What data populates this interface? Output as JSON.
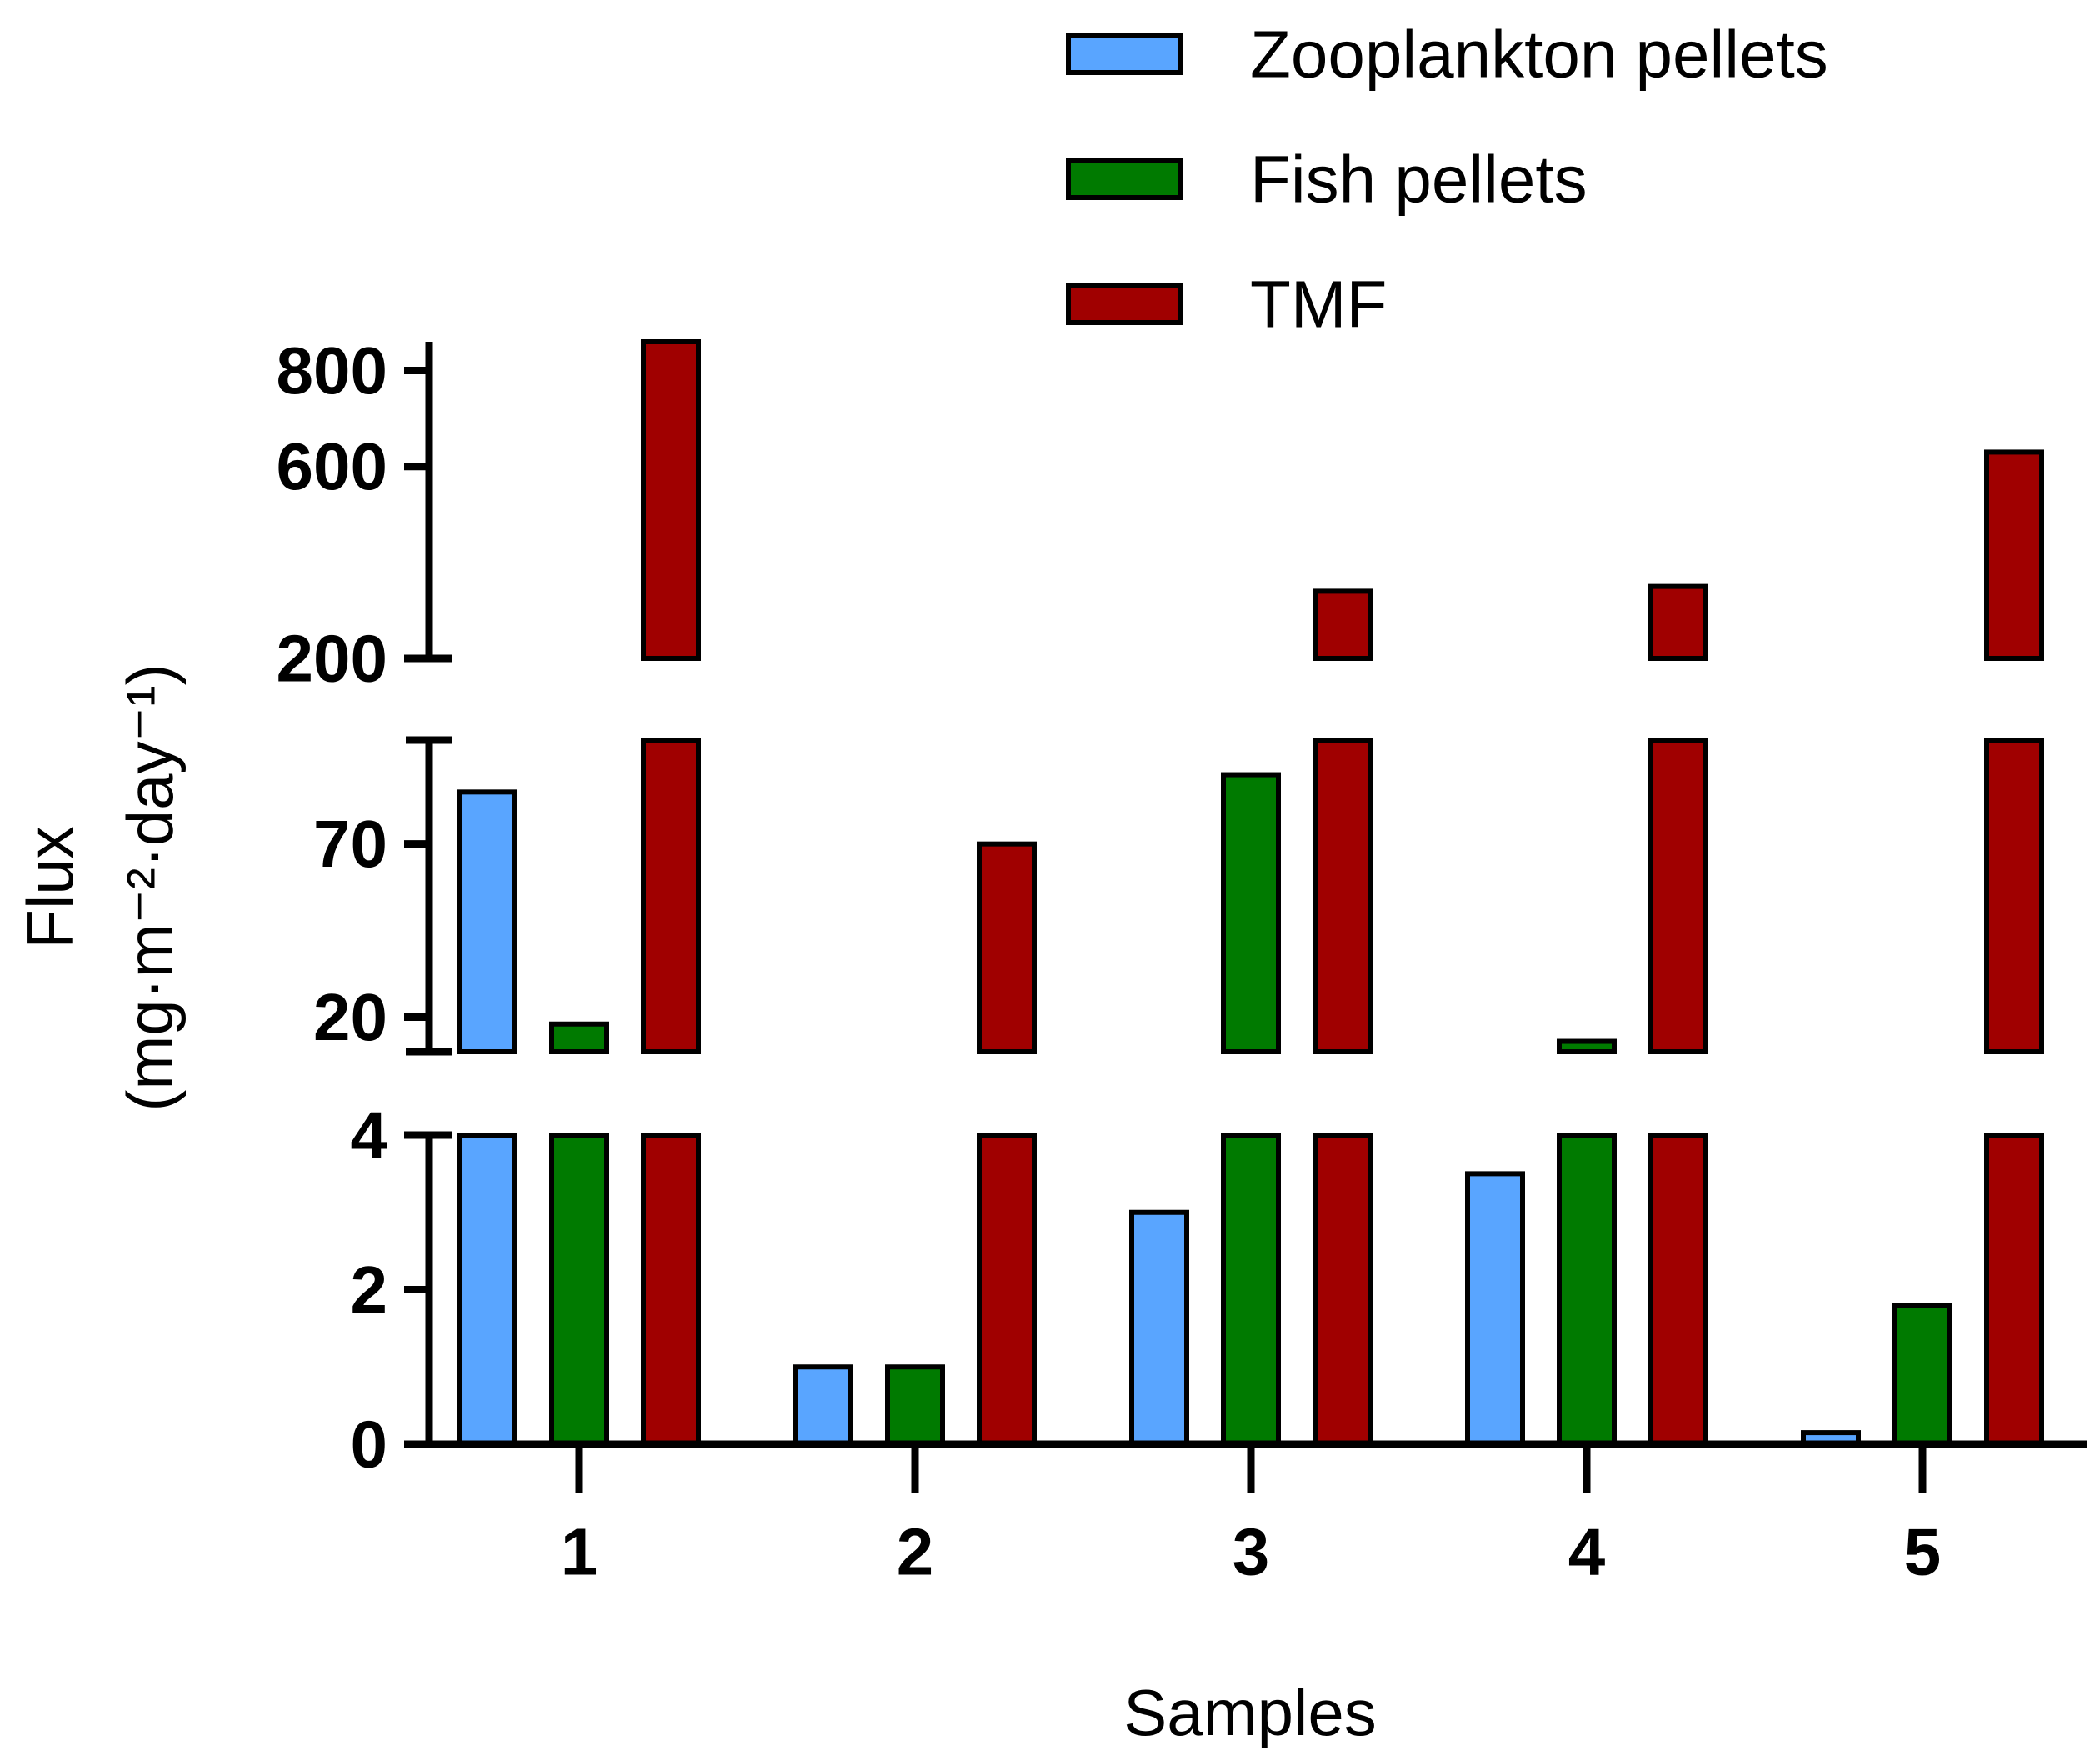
{
  "chart_data": {
    "type": "bar",
    "title": "",
    "xlabel": "Samples",
    "ylabel": "Flux",
    "ylabel_units": "(mg·m⁻²·day⁻¹)",
    "categories": [
      "1",
      "2",
      "3",
      "4",
      "5"
    ],
    "series": [
      {
        "name": "Zooplankton pellets",
        "color": "#59a5ff",
        "values": [
          85,
          1.0,
          3.0,
          3.5,
          0.15
        ]
      },
      {
        "name": "Fish pellets",
        "color": "#007a00",
        "values": [
          18,
          1.0,
          90,
          13,
          1.8
        ]
      },
      {
        "name": "TMF",
        "color": "#a00000",
        "values": [
          860,
          70,
          340,
          350,
          630
        ]
      }
    ],
    "y_axis_segments": [
      {
        "range": [
          0,
          4
        ],
        "ticks": [
          0,
          2,
          4
        ]
      },
      {
        "range": [
          10,
          100
        ],
        "ticks": [
          20,
          70
        ]
      },
      {
        "range": [
          200,
          860
        ],
        "ticks": [
          200,
          600,
          800
        ]
      }
    ],
    "legend_position": "top-right",
    "grid": false
  }
}
